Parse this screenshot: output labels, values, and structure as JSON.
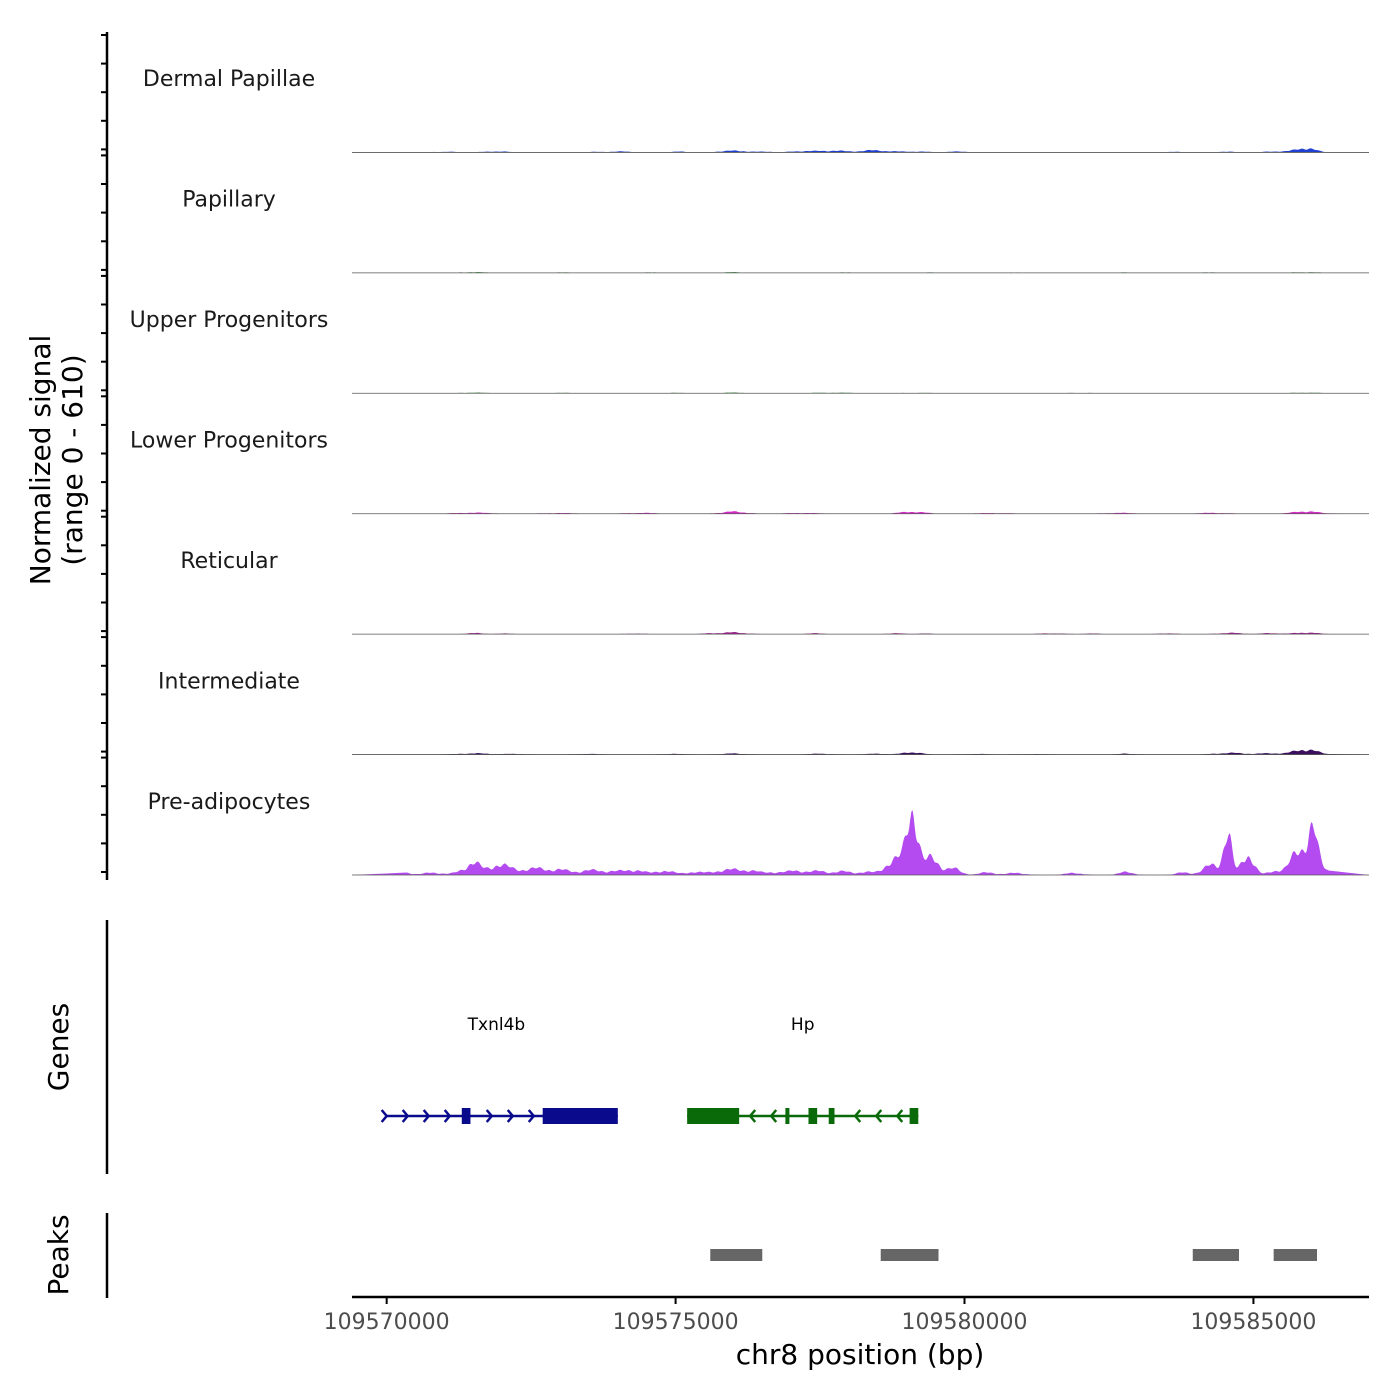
{
  "chart_data": {
    "type": "coverage",
    "chromosome": "chr8",
    "xlim": [
      109569400,
      109587000
    ],
    "xlabel": "chr8 position (bp)",
    "x_ticks": [
      109570000,
      109575000,
      109580000,
      109585000
    ],
    "x_tick_labels": [
      "109570000",
      "109575000",
      "109580000",
      "109585000"
    ],
    "coverage_ylabel_line1": "Normalized signal",
    "coverage_ylabel_line2": "(range 0 - 610)",
    "ylim": [
      0,
      610
    ],
    "genes_ylabel": "Genes",
    "peaks_ylabel": "Peaks",
    "tracks": [
      {
        "name": "Dermal Papillae",
        "color": "#1f3fd1",
        "peaks": [
          [
            109571000,
            3,
            300
          ],
          [
            109571900,
            5,
            200
          ],
          [
            109573700,
            3,
            200
          ],
          [
            109574100,
            4,
            150
          ],
          [
            109575100,
            4,
            150
          ],
          [
            109576000,
            8,
            250
          ],
          [
            109576600,
            3,
            150
          ],
          [
            109577200,
            6,
            200
          ],
          [
            109577600,
            5,
            200
          ],
          [
            109577800,
            5,
            150
          ],
          [
            109578300,
            6,
            200
          ],
          [
            109578600,
            6,
            250
          ],
          [
            109579200,
            4,
            200
          ],
          [
            109579900,
            4,
            200
          ],
          [
            109583600,
            3,
            150
          ],
          [
            109584500,
            4,
            150
          ],
          [
            109585400,
            5,
            200
          ],
          [
            109585900,
            22,
            160
          ]
        ]
      },
      {
        "name": "Papillary",
        "color": "#2a8a2a",
        "peaks": [
          [
            109571500,
            3,
            300
          ],
          [
            109573000,
            2,
            300
          ],
          [
            109574600,
            2,
            300
          ],
          [
            109576000,
            3,
            200
          ],
          [
            109578000,
            2,
            300
          ],
          [
            109579500,
            2,
            300
          ],
          [
            109581000,
            2,
            300
          ],
          [
            109582800,
            2,
            300
          ],
          [
            109584300,
            2,
            300
          ],
          [
            109585900,
            3,
            250
          ]
        ]
      },
      {
        "name": "Upper Progenitors",
        "color": "#2a8a2a",
        "peaks": [
          [
            109571500,
            3,
            250
          ],
          [
            109573000,
            2,
            300
          ],
          [
            109575000,
            2,
            300
          ],
          [
            109576000,
            3,
            200
          ],
          [
            109577500,
            2,
            250
          ],
          [
            109578000,
            2,
            300
          ],
          [
            109579200,
            2,
            300
          ],
          [
            109582000,
            2,
            300
          ],
          [
            109585900,
            3,
            250
          ]
        ]
      },
      {
        "name": "Lower Progenitors",
        "color": "#d62bc8",
        "peaks": [
          [
            109571500,
            5,
            300
          ],
          [
            109573000,
            3,
            300
          ],
          [
            109574400,
            4,
            250
          ],
          [
            109576000,
            10,
            200
          ],
          [
            109577200,
            4,
            250
          ],
          [
            109579100,
            10,
            200
          ],
          [
            109580500,
            3,
            300
          ],
          [
            109582700,
            4,
            250
          ],
          [
            109584300,
            4,
            250
          ],
          [
            109585900,
            12,
            200
          ]
        ]
      },
      {
        "name": "Reticular",
        "color": "#9b1e8c",
        "peaks": [
          [
            109571500,
            6,
            120
          ],
          [
            109572000,
            3,
            150
          ],
          [
            109574300,
            3,
            150
          ],
          [
            109575600,
            3,
            150
          ],
          [
            109576000,
            8,
            220
          ],
          [
            109577400,
            4,
            150
          ],
          [
            109578800,
            4,
            150
          ],
          [
            109579300,
            3,
            150
          ],
          [
            109581500,
            4,
            200
          ],
          [
            109582200,
            3,
            150
          ],
          [
            109583500,
            4,
            150
          ],
          [
            109584600,
            6,
            200
          ],
          [
            109585300,
            5,
            150
          ],
          [
            109585900,
            8,
            200
          ]
        ]
      },
      {
        "name": "Intermediate",
        "color": "#3b0f5e",
        "peaks": [
          [
            109571500,
            6,
            250
          ],
          [
            109572200,
            3,
            200
          ],
          [
            109573500,
            3,
            200
          ],
          [
            109575000,
            3,
            200
          ],
          [
            109576000,
            5,
            200
          ],
          [
            109577500,
            4,
            200
          ],
          [
            109578500,
            4,
            200
          ],
          [
            109579100,
            12,
            150
          ],
          [
            109580200,
            3,
            200
          ],
          [
            109581200,
            2,
            250
          ],
          [
            109582800,
            4,
            150
          ],
          [
            109584600,
            8,
            250
          ],
          [
            109585300,
            6,
            200
          ],
          [
            109585900,
            26,
            190
          ]
        ]
      },
      {
        "name": "Pre-adipocytes",
        "color": "#b44bf0",
        "peaks": [
          [
            109570300,
            14,
            120
          ],
          [
            109570800,
            12,
            150
          ],
          [
            109571300,
            14,
            150
          ],
          [
            109571500,
            55,
            120
          ],
          [
            109571900,
            45,
            150
          ],
          [
            109572200,
            22,
            200
          ],
          [
            109572600,
            25,
            200
          ],
          [
            109573000,
            22,
            200
          ],
          [
            109573500,
            20,
            180
          ],
          [
            109573900,
            18,
            180
          ],
          [
            109574300,
            25,
            150
          ],
          [
            109574800,
            22,
            150
          ],
          [
            109575300,
            15,
            150
          ],
          [
            109575700,
            12,
            150
          ],
          [
            109576000,
            22,
            200
          ],
          [
            109576300,
            16,
            150
          ],
          [
            109576700,
            14,
            150
          ],
          [
            109577100,
            22,
            150
          ],
          [
            109577500,
            18,
            150
          ],
          [
            109577900,
            16,
            150
          ],
          [
            109578300,
            14,
            150
          ],
          [
            109578700,
            45,
            120
          ],
          [
            109579000,
            80,
            180
          ],
          [
            109579100,
            300,
            85
          ],
          [
            109579450,
            80,
            120
          ],
          [
            109579800,
            30,
            130
          ],
          [
            109580400,
            12,
            150
          ],
          [
            109580900,
            10,
            150
          ],
          [
            109581900,
            10,
            150
          ],
          [
            109582800,
            14,
            130
          ],
          [
            109583800,
            12,
            130
          ],
          [
            109584300,
            50,
            150
          ],
          [
            109584550,
            200,
            70
          ],
          [
            109584900,
            110,
            100
          ],
          [
            109585400,
            22,
            130
          ],
          [
            109585800,
            120,
            140
          ],
          [
            109586020,
            200,
            90
          ],
          [
            109586250,
            25,
            100
          ]
        ]
      }
    ],
    "genes": [
      {
        "name": "Txnl4b",
        "strand": "+",
        "color": "#0a0a8c",
        "label_x": 109571900,
        "start": 109570000,
        "end": 109574000,
        "exons": [
          [
            109571300,
            109571450
          ],
          [
            109572700,
            109574000
          ]
        ]
      },
      {
        "name": "Hp",
        "strand": "-",
        "color": "#0a6a0a",
        "label_x": 109577200,
        "start": 109575200,
        "end": 109579200,
        "exons": [
          [
            109575200,
            109576100
          ],
          [
            109576900,
            109576970
          ],
          [
            109577300,
            109577450
          ],
          [
            109577650,
            109577750
          ],
          [
            109579050,
            109579200
          ]
        ]
      }
    ],
    "peak_regions": [
      [
        109575600,
        109576500
      ],
      [
        109578550,
        109579550
      ],
      [
        109583950,
        109584750
      ],
      [
        109585350,
        109586100
      ]
    ],
    "peak_color": "#666666"
  }
}
